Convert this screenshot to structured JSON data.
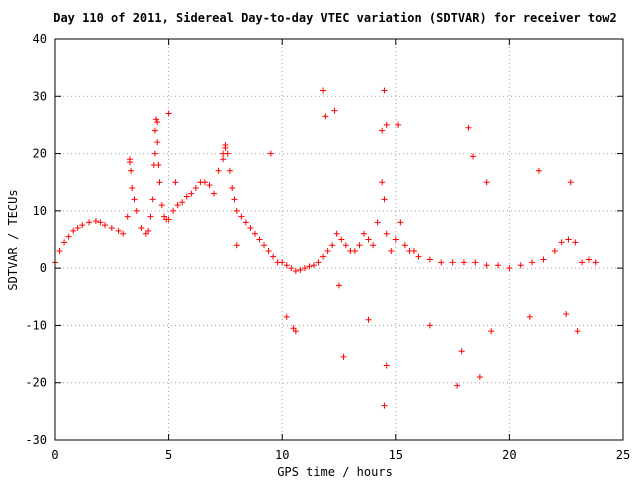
{
  "chart_data": {
    "type": "scatter",
    "title": "Day 110 of 2011, Sidereal Day-to-day VTEC variation (SDTVAR) for receiver tow2",
    "xlabel": "GPS time / hours",
    "ylabel": "SDTVAR / TECUs",
    "xlim": [
      0,
      25
    ],
    "ylim": [
      -30,
      40
    ],
    "x_ticks": [
      "0",
      "5",
      "10",
      "15",
      "20",
      "25"
    ],
    "y_ticks": [
      "40",
      "30",
      "20",
      "10",
      "0",
      "-10",
      "-20",
      "-30"
    ],
    "grid": true,
    "marker": "+",
    "color": "#ff0000",
    "series": [
      {
        "x": [
          0.0,
          0.2,
          0.4,
          0.6,
          0.8,
          1.0,
          1.2,
          1.5,
          1.8,
          2.0,
          2.2,
          2.5,
          2.8,
          3.0,
          3.2,
          3.3,
          3.35,
          3.4,
          3.5,
          3.6,
          3.8,
          4.0,
          4.1,
          4.2,
          4.3,
          4.35,
          4.4,
          4.45,
          4.5,
          4.55,
          4.6,
          4.7,
          4.8,
          4.9,
          5.0,
          5.2,
          5.4,
          5.6,
          5.8,
          6.0,
          6.2,
          6.4,
          6.6,
          6.8,
          7.0,
          7.2,
          7.4,
          7.5,
          7.6,
          7.7,
          7.8,
          7.9,
          8.0,
          8.2,
          8.4,
          8.6,
          8.8,
          9.0,
          9.2,
          9.4,
          9.6,
          9.8,
          10.0,
          10.2,
          10.4,
          10.6,
          10.8,
          11.0,
          11.2,
          11.4,
          11.6,
          11.8,
          12.0,
          12.2,
          12.4,
          12.6,
          12.8,
          13.0,
          13.2,
          13.4,
          13.6,
          13.8,
          14.0,
          14.2,
          14.4,
          14.5,
          14.6,
          14.8,
          15.0,
          15.2,
          15.4,
          15.6,
          15.8,
          16.0,
          16.5,
          17.0,
          17.5,
          18.0,
          18.5,
          19.0,
          19.5,
          20.0,
          20.5,
          21.0,
          21.5,
          22.0,
          22.3,
          22.6,
          22.9,
          23.2,
          23.5,
          23.8,
          7.5,
          7.4,
          4.5,
          4.4,
          3.3,
          9.5,
          11.8,
          11.9,
          12.3,
          14.4,
          14.5,
          14.6,
          15.1,
          18.2,
          18.4,
          19.0,
          21.3,
          22.7,
          5.0,
          5.3,
          8.0,
          10.6,
          12.7,
          14.5,
          17.7,
          18.7,
          19.2,
          23.0,
          12.5,
          13.8,
          17.9,
          20.9,
          22.5,
          14.6,
          16.5,
          10.2,
          10.5
        ],
        "y": [
          1.0,
          3.0,
          4.5,
          5.5,
          6.5,
          7.0,
          7.5,
          8.0,
          8.2,
          8.0,
          7.5,
          7.0,
          6.5,
          6.0,
          9.0,
          18.5,
          17.0,
          14.0,
          12.0,
          10.0,
          7.0,
          6.0,
          6.5,
          9.0,
          12.0,
          18.0,
          24.0,
          26.0,
          22.0,
          18.0,
          15.0,
          11.0,
          9.0,
          8.5,
          8.5,
          10.0,
          11.0,
          11.5,
          12.5,
          13.0,
          14.0,
          15.0,
          15.0,
          14.5,
          13.0,
          17.0,
          20.0,
          21.0,
          20.0,
          17.0,
          14.0,
          12.0,
          10.0,
          9.0,
          8.0,
          7.0,
          6.0,
          5.0,
          4.0,
          3.0,
          2.0,
          1.0,
          1.0,
          0.5,
          0.0,
          -0.5,
          -0.3,
          0.0,
          0.3,
          0.5,
          1.0,
          2.0,
          3.0,
          4.0,
          6.0,
          5.0,
          4.0,
          3.0,
          3.0,
          4.0,
          6.0,
          5.0,
          4.0,
          8.0,
          15.0,
          12.0,
          6.0,
          3.0,
          5.0,
          8.0,
          4.0,
          3.0,
          3.0,
          2.0,
          1.5,
          1.0,
          1.0,
          1.0,
          1.0,
          0.5,
          0.5,
          0.0,
          0.5,
          1.0,
          1.5,
          3.0,
          4.5,
          5.0,
          4.5,
          1.0,
          1.5,
          1.0,
          21.5,
          19.0,
          25.5,
          20.0,
          19.0,
          20.0,
          31.0,
          26.5,
          27.5,
          24.0,
          31.0,
          25.0,
          25.0,
          24.5,
          19.5,
          15.0,
          17.0,
          15.0,
          27.0,
          15.0,
          4.0,
          -11.0,
          -15.5,
          -24.0,
          -20.5,
          -19.0,
          -11.0,
          -11.0,
          -3.0,
          -9.0,
          -14.5,
          -8.5,
          -8.0,
          -17.0,
          -10.0,
          -8.5,
          -10.5
        ]
      }
    ]
  }
}
